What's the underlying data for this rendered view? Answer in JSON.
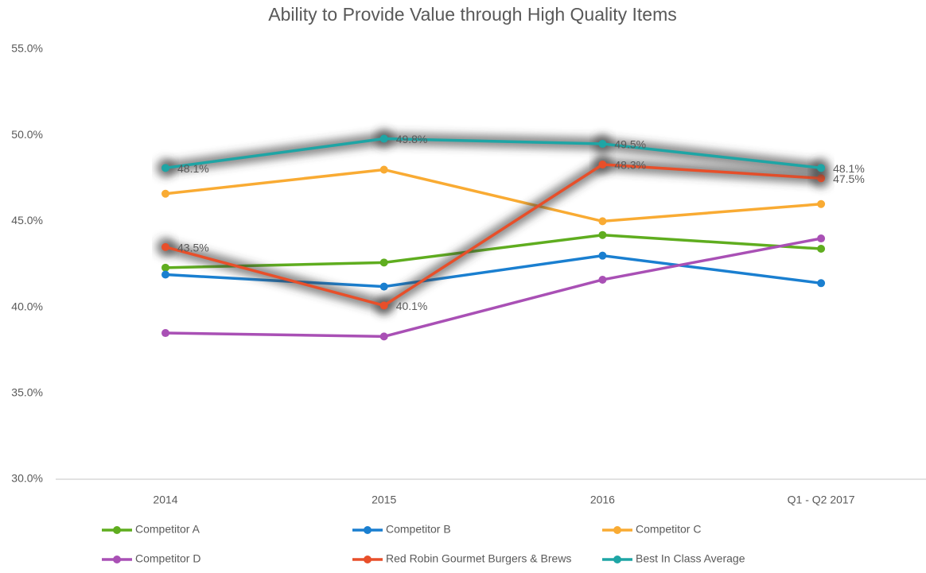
{
  "chart_data": {
    "type": "line",
    "title": "Ability to Provide Value through High Quality Items",
    "categories": [
      "2014",
      "2015",
      "2016",
      "Q1 - Q2 2017"
    ],
    "series": [
      {
        "name": "Competitor A",
        "color": "#5fad1f",
        "values": [
          42.3,
          42.6,
          44.2,
          43.4
        ]
      },
      {
        "name": "Competitor B",
        "color": "#1a7fd0",
        "values": [
          41.9,
          41.2,
          43.0,
          41.4
        ]
      },
      {
        "name": "Competitor C",
        "color": "#f9ab33",
        "values": [
          46.6,
          48.0,
          45.0,
          46.0
        ]
      },
      {
        "name": "Competitor D",
        "color": "#a950b5",
        "values": [
          38.5,
          38.3,
          41.6,
          44.0
        ]
      },
      {
        "name": "Red Robin Gourmet Burgers & Brews",
        "color": "#e84f2a",
        "highlight": true,
        "values": [
          43.5,
          40.1,
          48.3,
          47.5
        ],
        "value_labels": [
          "43.5%",
          "40.1%",
          "48.3%",
          "47.5%"
        ]
      },
      {
        "name": "Best In Class Average",
        "color": "#1ea5a5",
        "highlight": true,
        "values": [
          48.1,
          49.8,
          49.5,
          48.1
        ],
        "value_labels": [
          "48.1%",
          "49.8%",
          "49.5%",
          "48.1%"
        ]
      }
    ],
    "ylim": [
      30,
      55
    ],
    "yticks": [
      {
        "value": 30,
        "label": "30.0%"
      },
      {
        "value": 35,
        "label": "35.0%"
      },
      {
        "value": 40,
        "label": "40.0%"
      },
      {
        "value": 45,
        "label": "45.0%"
      },
      {
        "value": 50,
        "label": "50.0%"
      },
      {
        "value": 55,
        "label": "55.0%"
      }
    ],
    "grid": false,
    "legend_position": "bottom"
  }
}
